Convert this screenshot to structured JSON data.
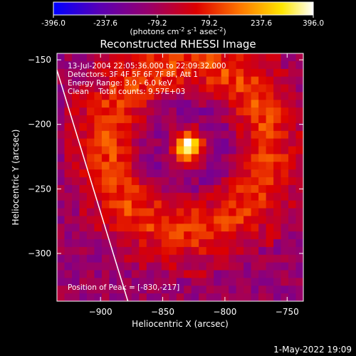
{
  "chart_data": {
    "type": "heatmap",
    "title": "Reconstructed RHESSI Image",
    "colorbar": {
      "ticks": [
        "-396.0",
        "-237.6",
        "-79.2",
        "79.2",
        "237.6",
        "396.0"
      ],
      "min": -396.0,
      "max": 396.0,
      "unit_main": "(photons cm",
      "unit_exp1": "-2",
      "unit_s": " s",
      "unit_exp2": "-1",
      "unit_asec": " asec",
      "unit_exp3": "-2",
      "unit_close": ")"
    },
    "info_lines": [
      "13-Jul-2004 22:05:36.000 to 22:09:32.000",
      "Detectors: 3F 4F 5F 6F 7F 8F, Att 1",
      "Energy Range: 3.0 - 6.0 keV",
      "Clean    Total counts: 9.57E+03"
    ],
    "peak_text": "Position of Peak = [-830,-217]",
    "peak": {
      "x": -830,
      "y": -217,
      "value": 396.0
    },
    "xlabel": "Heliocentric X (arcsec)",
    "ylabel": "Heliocentric Y (arcsec)",
    "xlim": [
      -935,
      -737
    ],
    "ylim": [
      -337,
      -145
    ],
    "xticks": [
      -900,
      -850,
      -800,
      -750
    ],
    "yticks": [
      -150,
      -200,
      -250,
      -300
    ],
    "xtick_labels": [
      "−900",
      "−850",
      "−800",
      "−750"
    ],
    "ytick_labels": [
      "−150",
      "−200",
      "−250",
      "−300"
    ],
    "limb_line": [
      [
        -935,
        -158
      ],
      [
        -878,
        -337
      ]
    ],
    "grid": false,
    "colors": [
      "#0000ff",
      "#5a00b4",
      "#96006e",
      "#dc0000",
      "#ff7800",
      "#ffe600",
      "#ffffff"
    ]
  },
  "footer_date": "1-May-2022 19:09"
}
